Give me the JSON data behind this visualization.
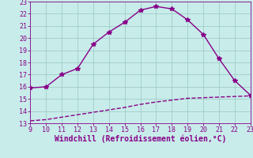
{
  "upper_x": [
    9,
    10,
    11,
    12,
    13,
    14,
    15,
    16,
    17,
    18,
    19,
    20,
    21,
    22,
    23
  ],
  "upper_y": [
    15.9,
    16.0,
    17.0,
    17.5,
    19.5,
    20.5,
    21.3,
    22.3,
    22.6,
    22.4,
    21.5,
    20.3,
    18.3,
    16.5,
    15.3
  ],
  "lower_x": [
    9,
    10,
    11,
    12,
    13,
    14,
    15,
    16,
    17,
    18,
    19,
    20,
    21,
    22,
    23
  ],
  "lower_y": [
    13.2,
    13.3,
    13.5,
    13.7,
    13.9,
    14.1,
    14.3,
    14.55,
    14.75,
    14.9,
    15.05,
    15.1,
    15.15,
    15.2,
    15.25
  ],
  "line_color": "#880088",
  "bg_color": "#c8ecea",
  "grid_color": "#a0ccc8",
  "xlabel": "Windchill (Refroidissement éolien,°C)",
  "xlim": [
    9,
    23
  ],
  "ylim": [
    13,
    23
  ],
  "xticks": [
    9,
    10,
    11,
    12,
    13,
    14,
    15,
    16,
    17,
    18,
    19,
    20,
    21,
    22,
    23
  ],
  "yticks": [
    13,
    14,
    15,
    16,
    17,
    18,
    19,
    20,
    21,
    22,
    23
  ],
  "marker": "*",
  "markersize": 4,
  "linewidth": 1.0,
  "xlabel_fontsize": 7,
  "tick_fontsize": 6,
  "tick_color": "#880088",
  "label_color": "#880088"
}
